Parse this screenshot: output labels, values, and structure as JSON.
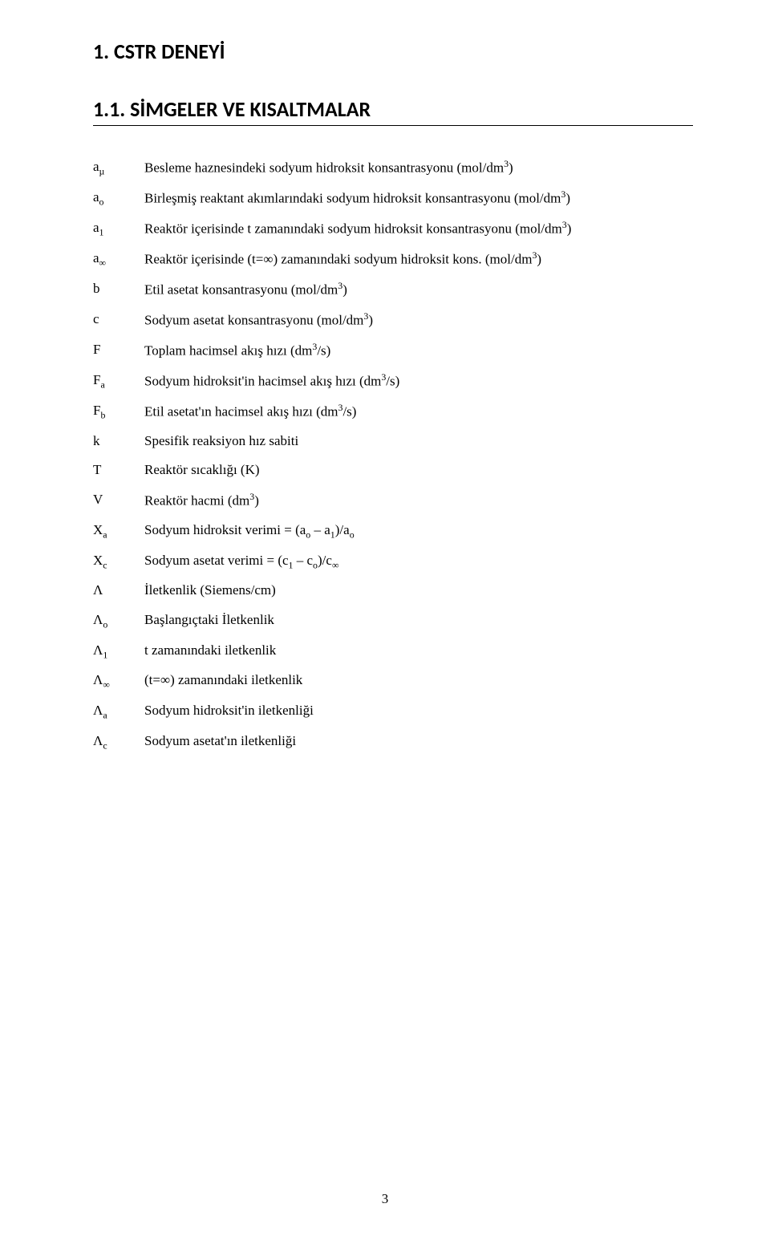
{
  "titles": {
    "main": "1.  CSTR DENEYİ",
    "sub": "1.1.   SİMGELER VE KISALTMALAR"
  },
  "symbols": [
    {
      "sym_base": "a",
      "sym_sub": "µ",
      "desc_pre": "Besleme haznesindeki sodyum hidroksit konsantrasyonu (mol/dm",
      "desc_sup": "3",
      "desc_post": ")"
    },
    {
      "sym_base": "a",
      "sym_sub": "o",
      "desc_pre": "Birleşmiş reaktant akımlarındaki sodyum hidroksit konsantrasyonu (mol/dm",
      "desc_sup": "3",
      "desc_post": ")"
    },
    {
      "sym_base": "a",
      "sym_sub": "1",
      "desc_pre": "Reaktör içerisinde t zamanındaki sodyum hidroksit konsantrasyonu (mol/dm",
      "desc_sup": "3",
      "desc_post": ")"
    },
    {
      "sym_base": "a",
      "sym_sub": "∞",
      "desc_pre": "Reaktör içerisinde (t=∞) zamanındaki sodyum hidroksit kons. (mol/dm",
      "desc_sup": "3",
      "desc_post": ")"
    },
    {
      "sym_base": "b",
      "sym_sub": "",
      "desc_pre": "Etil asetat konsantrasyonu (mol/dm",
      "desc_sup": "3",
      "desc_post": ")"
    },
    {
      "sym_base": "c",
      "sym_sub": "",
      "desc_pre": "Sodyum asetat konsantrasyonu (mol/dm",
      "desc_sup": "3",
      "desc_post": ")"
    },
    {
      "sym_base": "F",
      "sym_sub": "",
      "desc_pre": "Toplam hacimsel akış hızı (dm",
      "desc_sup": "3",
      "desc_post": "/s)"
    },
    {
      "sym_base": "F",
      "sym_sub": "a",
      "desc_pre": "Sodyum hidroksit'in hacimsel akış hızı (dm",
      "desc_sup": "3",
      "desc_post": "/s)"
    },
    {
      "sym_base": "F",
      "sym_sub": "b",
      "desc_pre": "Etil asetat'ın hacimsel akış hızı (dm",
      "desc_sup": "3",
      "desc_post": "/s)"
    },
    {
      "sym_base": "k",
      "sym_sub": "",
      "desc_pre": "Spesifik reaksiyon hız sabiti",
      "desc_sup": "",
      "desc_post": ""
    },
    {
      "sym_base": "T",
      "sym_sub": "",
      "desc_pre": "Reaktör sıcaklığı (K)",
      "desc_sup": "",
      "desc_post": ""
    },
    {
      "sym_base": "V",
      "sym_sub": "",
      "desc_pre": "Reaktör hacmi (dm",
      "desc_sup": "3",
      "desc_post": ")"
    },
    {
      "sym_base": "X",
      "sym_sub": "a",
      "desc_html": "Sodyum hidroksit verimi = (a<span class=\"sub\">o</span> – a<span class=\"sub\">1</span>)/a<span class=\"sub\">o</span>"
    },
    {
      "sym_base": "X",
      "sym_sub": "c",
      "desc_html": "Sodyum asetat verimi = (c<span class=\"sub\">1</span> – c<span class=\"sub\">o</span>)/c<span class=\"sub\">∞</span>"
    },
    {
      "sym_base": "Λ",
      "sym_sub": "",
      "desc_pre": "İletkenlik (Siemens/cm)",
      "desc_sup": "",
      "desc_post": ""
    },
    {
      "sym_base": "Λ",
      "sym_sub": "o",
      "desc_pre": "Başlangıçtaki İletkenlik",
      "desc_sup": "",
      "desc_post": ""
    },
    {
      "sym_base": "Λ",
      "sym_sub": "1",
      "desc_pre": "t zamanındaki iletkenlik",
      "desc_sup": "",
      "desc_post": ""
    },
    {
      "sym_base": "Λ",
      "sym_sub": "∞",
      "desc_pre": "(t=∞) zamanındaki iletkenlik",
      "desc_sup": "",
      "desc_post": ""
    },
    {
      "sym_base": "Λ",
      "sym_sub": "a",
      "desc_pre": "Sodyum hidroksit'in iletkenliği",
      "desc_sup": "",
      "desc_post": ""
    },
    {
      "sym_base": "Λ",
      "sym_sub": "c",
      "desc_pre": "Sodyum asetat'ın iletkenliği",
      "desc_sup": "",
      "desc_post": ""
    }
  ],
  "page_number": "3"
}
